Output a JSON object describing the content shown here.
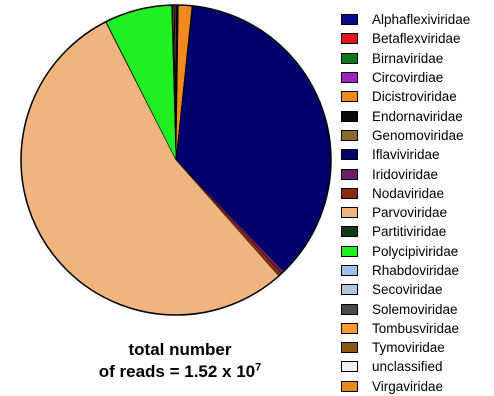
{
  "chart_data": {
    "type": "pie",
    "categories": [
      "Alphaflexiviridae",
      "Betaflexviridae",
      "Birnaviridae",
      "Circovirdiae",
      "Dicistroviridae",
      "Endornaviridae",
      "Genomoviridae",
      "Iflaviviridae",
      "Iridoviridae",
      "Nodaviridae",
      "Parvoviridae",
      "Partitiviridae",
      "Polycipiviridae",
      "Rhabdoviridae",
      "Secoviridae",
      "Solemoviridae",
      "Tombusviridae",
      "Tymoviridae",
      "unclassified",
      "Virgaviridae"
    ],
    "colors": [
      "#0a0a8c",
      "#e8141c",
      "#0a7a1a",
      "#a020c0",
      "#f08a1e",
      "#0a0a0a",
      "#8a6a2a",
      "#00006e",
      "#6a1f6a",
      "#8a2a10",
      "#f0b47e",
      "#103a18",
      "#20f020",
      "#9ac0ee",
      "#b0c4de",
      "#4a4a4a",
      "#ff9a30",
      "#8a5a10",
      "#f0f0f0",
      "#e88a1a"
    ],
    "values": [
      0.1,
      0.05,
      0.05,
      0.05,
      1.4,
      0.05,
      0.05,
      36.0,
      0.3,
      0.4,
      54.0,
      0.05,
      7.0,
      0.05,
      0.05,
      0.05,
      0.1,
      0.05,
      0.1,
      0.05
    ],
    "title": "",
    "legend_position": "right"
  },
  "caption": {
    "line1": "total number",
    "line2_prefix": "of reads = 1.52 x 10",
    "line2_exponent": "7"
  }
}
